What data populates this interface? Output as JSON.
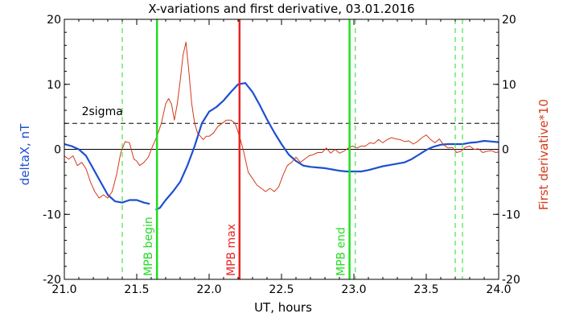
{
  "chart_data": {
    "type": "line",
    "title": "X-variations and first derivative, 03.01.2016",
    "xlabel": "UT, hours",
    "ylabel_left": "deltaX, nT",
    "ylabel_right": "First derivative*10",
    "xlim": [
      21.0,
      24.0
    ],
    "ylim_left": [
      -20,
      20
    ],
    "ylim_right": [
      -20,
      20
    ],
    "xticks": [
      "21.0",
      "21.5",
      "22.0",
      "22.5",
      "23.0",
      "23.5",
      "24.0"
    ],
    "xtick_values": [
      21.0,
      21.5,
      22.0,
      22.5,
      23.0,
      23.5,
      24.0
    ],
    "yticks_left": [
      "20",
      "10",
      "0",
      "-10",
      "-20"
    ],
    "ytick_values_left": [
      20,
      10,
      0,
      -10,
      -20
    ],
    "yticks_right": [
      "20",
      "10",
      "0",
      "-10",
      "-20"
    ],
    "ytick_values_right": [
      20,
      10,
      0,
      -10,
      -20
    ],
    "colors": {
      "deltaX": "#1f4fd1",
      "derivative": "#d23a1a",
      "mpb_begin_end": "#22dd22",
      "mpb_max": "#ee2222",
      "dashed_green": "#22dd22",
      "threshold": "#000000"
    },
    "threshold": {
      "label": "2sigma",
      "value": 4.0
    },
    "zero_line": 0,
    "vertical_lines": [
      {
        "x": 21.4,
        "style": "dashed",
        "color": "#22dd22"
      },
      {
        "x": 21.64,
        "style": "solid",
        "color": "#22dd22",
        "label": "MPB begin"
      },
      {
        "x": 22.21,
        "style": "solid",
        "color": "#ee2222",
        "label": "MPB max"
      },
      {
        "x": 22.97,
        "style": "solid",
        "color": "#22dd22",
        "label": "MPB end"
      },
      {
        "x": 23.01,
        "style": "dashed",
        "color": "#22dd22"
      },
      {
        "x": 23.7,
        "style": "dashed",
        "color": "#22dd22"
      },
      {
        "x": 23.75,
        "style": "dashed",
        "color": "#22dd22"
      }
    ],
    "series": [
      {
        "name": "deltaX, nT",
        "axis": "left",
        "color": "#1f4fd1",
        "x": [
          21.0,
          21.05,
          21.1,
          21.15,
          21.2,
          21.25,
          21.3,
          21.35,
          21.4,
          21.45,
          21.5,
          21.55,
          21.59,
          null,
          21.63,
          21.66,
          21.7,
          21.75,
          21.8,
          21.85,
          21.9,
          21.95,
          22.0,
          22.05,
          22.1,
          22.15,
          22.2,
          22.25,
          22.3,
          22.35,
          22.4,
          22.45,
          22.5,
          22.55,
          22.6,
          22.65,
          22.7,
          22.75,
          22.8,
          22.85,
          22.9,
          22.95,
          23.0,
          23.05,
          23.1,
          23.15,
          23.2,
          23.25,
          23.3,
          23.35,
          23.4,
          23.45,
          23.5,
          23.55,
          23.6,
          23.65,
          23.7,
          23.75,
          23.8,
          23.85,
          23.9,
          23.95,
          24.0
        ],
        "y": [
          0.8,
          0.5,
          0.0,
          -1.0,
          -3.0,
          -5.0,
          -7.0,
          -8.0,
          -8.2,
          -7.8,
          -7.8,
          -8.2,
          -8.4,
          null,
          -9.3,
          -9.0,
          -7.8,
          -6.5,
          -5.0,
          -2.5,
          0.5,
          4.0,
          5.8,
          6.5,
          7.5,
          8.8,
          10.0,
          10.2,
          8.8,
          6.8,
          4.6,
          2.6,
          0.8,
          -0.8,
          -1.8,
          -2.5,
          -2.7,
          -2.8,
          -2.9,
          -3.1,
          -3.3,
          -3.4,
          -3.4,
          -3.4,
          -3.2,
          -2.9,
          -2.6,
          -2.4,
          -2.2,
          -2.0,
          -1.5,
          -0.8,
          -0.1,
          0.4,
          0.7,
          0.8,
          0.8,
          0.8,
          1.0,
          1.1,
          1.3,
          1.2,
          1.1
        ]
      },
      {
        "name": "First derivative*10",
        "axis": "right",
        "color": "#d23a1a",
        "x": [
          21.0,
          21.03,
          21.06,
          21.09,
          21.12,
          21.15,
          21.18,
          21.21,
          21.24,
          21.27,
          21.3,
          21.33,
          21.36,
          21.39,
          21.42,
          21.45,
          21.48,
          21.5,
          21.52,
          21.55,
          21.58,
          21.61,
          21.64,
          21.67,
          21.7,
          21.72,
          21.74,
          21.76,
          21.78,
          21.8,
          21.82,
          21.84,
          21.86,
          21.88,
          21.9,
          21.92,
          21.94,
          21.96,
          21.98,
          22.0,
          22.03,
          22.06,
          22.09,
          22.12,
          22.15,
          22.18,
          22.21,
          22.24,
          22.27,
          22.3,
          22.33,
          22.36,
          22.39,
          22.42,
          22.45,
          22.48,
          22.51,
          22.54,
          22.57,
          22.6,
          22.63,
          22.66,
          22.69,
          22.72,
          22.75,
          22.78,
          22.81,
          22.84,
          22.87,
          22.9,
          22.93,
          22.96,
          22.99,
          23.02,
          23.05,
          23.08,
          23.11,
          23.14,
          23.17,
          23.2,
          23.23,
          23.26,
          23.29,
          23.32,
          23.35,
          23.38,
          23.41,
          23.44,
          23.47,
          23.5,
          23.53,
          23.56,
          23.59,
          23.62,
          23.65,
          23.68,
          23.71,
          23.74,
          23.77,
          23.8,
          23.83,
          23.86,
          23.89,
          23.92,
          23.95,
          23.98,
          24.0
        ],
        "y": [
          -1.0,
          -1.5,
          -1.0,
          -2.5,
          -2.0,
          -3.0,
          -5.0,
          -6.5,
          -7.5,
          -7.0,
          -7.5,
          -6.5,
          -4.0,
          -0.5,
          1.2,
          1.0,
          -1.5,
          -1.8,
          -2.5,
          -2.0,
          -1.2,
          0.5,
          2.0,
          4.0,
          7.0,
          7.8,
          7.0,
          4.5,
          7.0,
          10.5,
          14.5,
          16.5,
          12.0,
          7.0,
          4.0,
          2.5,
          2.0,
          1.5,
          2.0,
          2.0,
          2.5,
          3.5,
          4.0,
          4.5,
          4.5,
          4.0,
          2.0,
          -0.5,
          -3.5,
          -4.5,
          -5.5,
          -6.0,
          -6.5,
          -6.0,
          -6.5,
          -5.8,
          -4.0,
          -2.5,
          -2.0,
          -1.2,
          -2.0,
          -1.5,
          -1.0,
          -0.8,
          -0.5,
          -0.5,
          0.2,
          -0.6,
          0.0,
          -0.6,
          -0.3,
          0.2,
          0.5,
          0.2,
          0.5,
          0.5,
          1.0,
          0.9,
          1.5,
          1.0,
          1.5,
          1.8,
          1.6,
          1.5,
          1.2,
          1.3,
          0.8,
          1.2,
          1.8,
          2.2,
          1.5,
          1.0,
          1.6,
          0.7,
          0.2,
          0.3,
          -0.5,
          -0.3,
          0.3,
          0.5,
          0.0,
          0.1,
          -0.5,
          -0.3,
          -0.2,
          -0.5,
          -0.4
        ]
      }
    ]
  }
}
